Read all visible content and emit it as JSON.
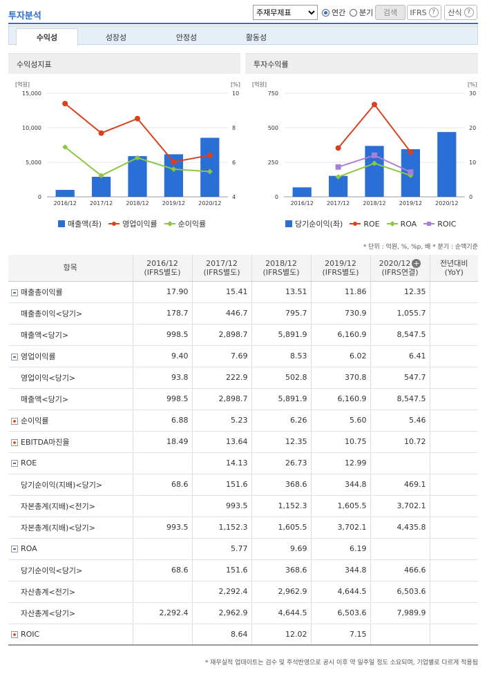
{
  "header": {
    "title": "투자분석",
    "select_value": "주재무제표",
    "radio_annual": "연간",
    "radio_quarter": "분기",
    "search_label": "검색",
    "ifrs_label": "IFRS",
    "formula_label": "산식",
    "help_symbol": "?"
  },
  "tabs": [
    {
      "label": "수익성"
    },
    {
      "label": "성장성"
    },
    {
      "label": "안정성"
    },
    {
      "label": "활동성"
    }
  ],
  "charts": {
    "left": {
      "panel_title": "수익성지표",
      "left_unit": "[억원]",
      "right_unit": "[%]",
      "left_ticks": [
        "15,000",
        "10,000",
        "5,000",
        "0"
      ],
      "right_ticks": [
        "10",
        "8",
        "6",
        "4"
      ],
      "legend": [
        "매출액(좌)",
        "영업이익률",
        "순이익률"
      ]
    },
    "right": {
      "panel_title": "투자수익률",
      "left_unit": "[억원]",
      "right_unit": "[%]",
      "left_ticks": [
        "750",
        "500",
        "250",
        "0"
      ],
      "right_ticks": [
        "30",
        "20",
        "10",
        "0"
      ],
      "legend": [
        "당기순이익(좌)",
        "ROE",
        "ROA",
        "ROIC"
      ]
    }
  },
  "chart_data": [
    {
      "type": "bar",
      "title": "수익성지표",
      "categories": [
        "2016/12",
        "2017/12",
        "2018/12",
        "2019/12",
        "2020/12"
      ],
      "ylim_left": [
        0,
        15000
      ],
      "ylim_right": [
        4,
        10
      ],
      "series": [
        {
          "name": "매출액(좌)",
          "axis": "left",
          "kind": "bar",
          "color": "#2a6fd6",
          "values": [
            998.5,
            2898.7,
            5891.9,
            6160.9,
            8547.5
          ]
        },
        {
          "name": "영업이익률",
          "axis": "right",
          "kind": "line",
          "color": "#d9411e",
          "values": [
            9.4,
            7.69,
            8.53,
            6.02,
            6.41
          ]
        },
        {
          "name": "순이익률",
          "axis": "right",
          "kind": "line",
          "color": "#8dc63f",
          "values": [
            6.88,
            5.23,
            6.26,
            5.6,
            5.46
          ]
        }
      ]
    },
    {
      "type": "bar",
      "title": "투자수익률",
      "categories": [
        "2016/12",
        "2017/12",
        "2018/12",
        "2019/12",
        "2020/12"
      ],
      "ylim_left": [
        0,
        750
      ],
      "ylim_right": [
        0,
        30
      ],
      "series": [
        {
          "name": "당기순이익(좌)",
          "axis": "left",
          "kind": "bar",
          "color": "#2a6fd6",
          "values": [
            68.6,
            151.6,
            368.6,
            344.8,
            469.1
          ]
        },
        {
          "name": "ROE",
          "axis": "right",
          "kind": "line",
          "color": "#d9411e",
          "values": [
            null,
            14.13,
            26.73,
            12.99,
            null
          ]
        },
        {
          "name": "ROA",
          "axis": "right",
          "kind": "line",
          "color": "#8dc63f",
          "values": [
            null,
            5.77,
            9.69,
            6.19,
            null
          ]
        },
        {
          "name": "ROIC",
          "axis": "right",
          "kind": "line",
          "color": "#a87fd9",
          "values": [
            null,
            8.64,
            12.02,
            7.15,
            null
          ]
        }
      ]
    }
  ],
  "unit_note": "* 단위 : 억원, %, %p, 배   * 분기 : 순액기준",
  "table": {
    "headers": [
      {
        "line1": "항목",
        "line2": ""
      },
      {
        "line1": "2016/12",
        "line2": "(IFRS별도)"
      },
      {
        "line1": "2017/12",
        "line2": "(IFRS별도)"
      },
      {
        "line1": "2018/12",
        "line2": "(IFRS별도)"
      },
      {
        "line1": "2019/12",
        "line2": "(IFRS별도)"
      },
      {
        "line1": "2020/12",
        "line2": "(IFRS연결)"
      },
      {
        "line1": "전년대비",
        "line2": "(YoY)"
      }
    ],
    "rows": [
      {
        "label": "매출총이익률",
        "kind": "minus",
        "cells": [
          "17.90",
          "15.41",
          "13.51",
          "11.86",
          "12.35",
          ""
        ]
      },
      {
        "label": "매출총이익<당기>",
        "kind": "sub",
        "cells": [
          "178.7",
          "446.7",
          "795.7",
          "730.9",
          "1,055.7",
          ""
        ]
      },
      {
        "label": "매출액<당기>",
        "kind": "sub",
        "cells": [
          "998.5",
          "2,898.7",
          "5,891.9",
          "6,160.9",
          "8,547.5",
          ""
        ]
      },
      {
        "label": "영업이익률",
        "kind": "minus",
        "cells": [
          "9.40",
          "7.69",
          "8.53",
          "6.02",
          "6.41",
          ""
        ]
      },
      {
        "label": "영업이익<당기>",
        "kind": "sub",
        "cells": [
          "93.8",
          "222.9",
          "502.8",
          "370.8",
          "547.7",
          ""
        ]
      },
      {
        "label": "매출액<당기>",
        "kind": "sub",
        "cells": [
          "998.5",
          "2,898.7",
          "5,891.9",
          "6,160.9",
          "8,547.5",
          ""
        ]
      },
      {
        "label": "순이익률",
        "kind": "plus",
        "cells": [
          "6.88",
          "5.23",
          "6.26",
          "5.60",
          "5.46",
          ""
        ]
      },
      {
        "label": "EBITDA마진율",
        "kind": "plus",
        "cells": [
          "18.49",
          "13.64",
          "12.35",
          "10.75",
          "10.72",
          ""
        ]
      },
      {
        "label": "ROE",
        "kind": "minus",
        "cells": [
          "",
          "14.13",
          "26.73",
          "12.99",
          "",
          ""
        ]
      },
      {
        "label": "당기순이익(지배)<당기>",
        "kind": "sub",
        "cells": [
          "68.6",
          "151.6",
          "368.6",
          "344.8",
          "469.1",
          ""
        ]
      },
      {
        "label": "자본총계(지배)<전기>",
        "kind": "sub",
        "cells": [
          "",
          "993.5",
          "1,152.3",
          "1,605.5",
          "3,702.1",
          ""
        ]
      },
      {
        "label": "자본총계(지배)<당기>",
        "kind": "sub",
        "cells": [
          "993.5",
          "1,152.3",
          "1,605.5",
          "3,702.1",
          "4,435.8",
          ""
        ]
      },
      {
        "label": "ROA",
        "kind": "minus",
        "cells": [
          "",
          "5.77",
          "9.69",
          "6.19",
          "",
          ""
        ]
      },
      {
        "label": "당기순이익<당기>",
        "kind": "sub",
        "cells": [
          "68.6",
          "151.6",
          "368.6",
          "344.8",
          "466.6",
          ""
        ]
      },
      {
        "label": "자산총계<전기>",
        "kind": "sub",
        "cells": [
          "",
          "2,292.4",
          "2,962.9",
          "4,644.5",
          "6,503.6",
          ""
        ]
      },
      {
        "label": "자산총계<당기>",
        "kind": "sub",
        "cells": [
          "2,292.4",
          "2,962.9",
          "4,644.5",
          "6,503.6",
          "7,989.9",
          ""
        ]
      },
      {
        "label": "ROIC",
        "kind": "plus",
        "cells": [
          "",
          "8.64",
          "12.02",
          "7.15",
          "",
          ""
        ]
      }
    ]
  },
  "footnote": "* 재무실적 업데이트는 검수 및 주석반영으로 공시 이후 약 일주일 정도 소요되며, 기업별로 다르게 적용됨"
}
